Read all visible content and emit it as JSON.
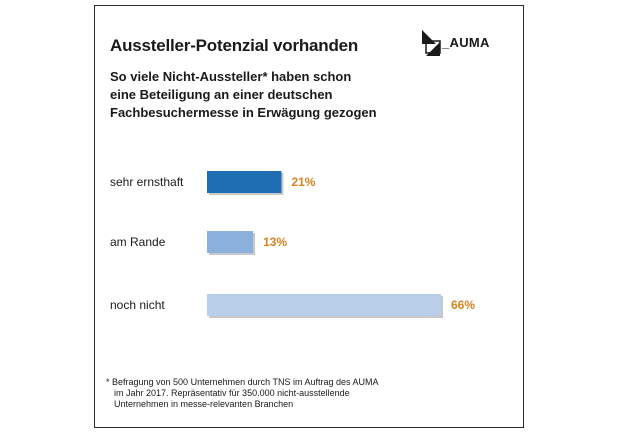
{
  "brand": {
    "logo_text": "_AUMA",
    "value_label_color": "#d9821e",
    "bar_colors": [
      "#1f6eb3",
      "#8bb0dc",
      "#b9cfe9"
    ],
    "bar_shadow_color": "#c8c8c8"
  },
  "chart_data": {
    "type": "bar",
    "orientation": "horizontal",
    "title": "Aussteller-Potenzial vorhanden",
    "subtitle": [
      "So viele Nicht-Aussteller* haben schon",
      "eine Beteiligung an einer deutschen",
      "Fachbesuchermesse in Erwägung gezogen"
    ],
    "categories": [
      "sehr ernsthaft",
      "am Rande",
      "noch nicht"
    ],
    "values": [
      21,
      13,
      66
    ],
    "value_labels": [
      "21%",
      "13%",
      "66%"
    ],
    "xlim": [
      0,
      66
    ],
    "grid": false,
    "footnote": [
      "* Befragung von 500 Unternehmen durch TNS im Auftrag des AUMA",
      "im Jahr 2017. Repräsentativ für 350.000 nicht-ausstellende",
      "Unternehmen in messe-relevanten Branchen"
    ]
  }
}
